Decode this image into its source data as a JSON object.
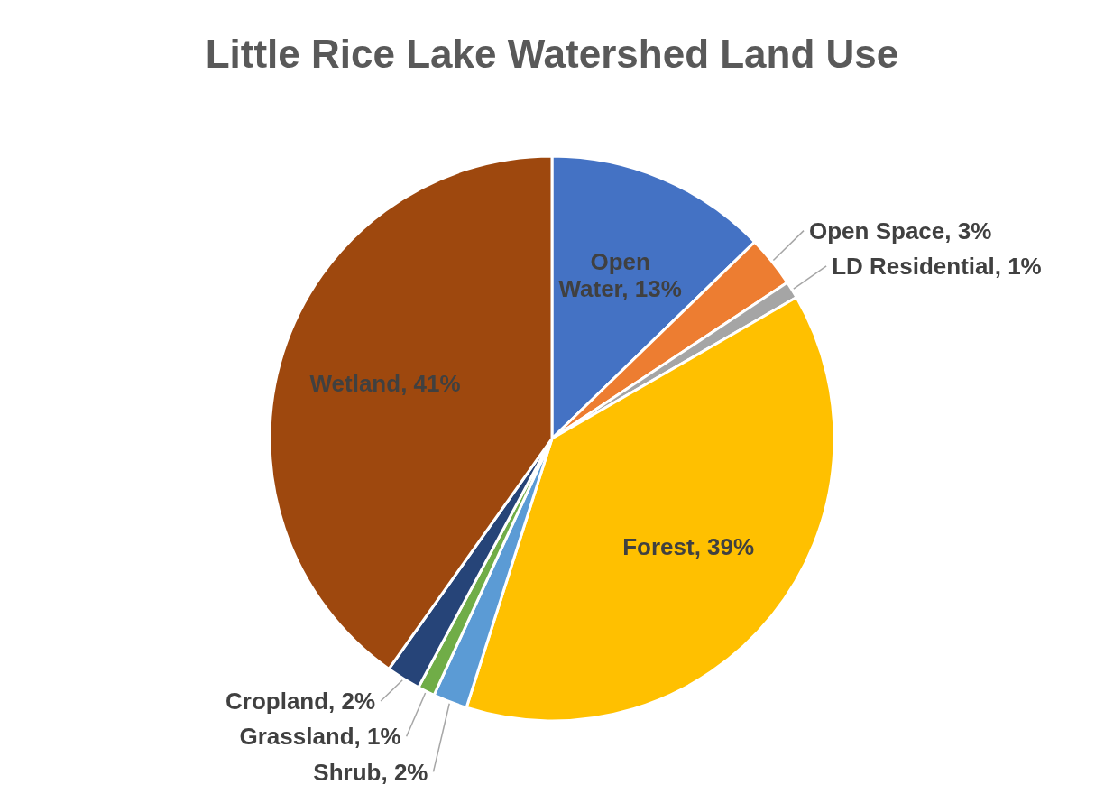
{
  "chart_data": {
    "type": "pie",
    "title": "Little Rice Lake Watershed Land Use",
    "categories": [
      "Open Water",
      "Open Space",
      "LD Residential",
      "Forest",
      "Shrub",
      "Grassland",
      "Cropland",
      "Wetland"
    ],
    "values": [
      13,
      3,
      1,
      39,
      2,
      1,
      2,
      41
    ],
    "value_labels": [
      "13%",
      "3%",
      "1%",
      "39%",
      "2%",
      "1%",
      "2%",
      "41%"
    ],
    "colors": [
      "#4472c4",
      "#ed7d31",
      "#a5a5a5",
      "#ffc000",
      "#5b9bd5",
      "#70ad47",
      "#264478",
      "#9e480e"
    ]
  }
}
